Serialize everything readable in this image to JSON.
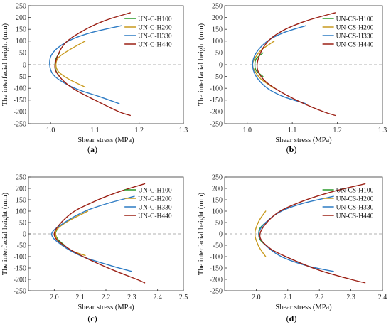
{
  "chart_data": [
    {
      "type": "line",
      "panel_label": "a",
      "xlabel": "Shear stress (MPa)",
      "ylabel": "The interfacial height (mm)",
      "xlim": [
        0.95,
        1.3
      ],
      "ylim": [
        -250,
        250
      ],
      "xticks": [
        1.0,
        1.1,
        1.2,
        1.3
      ],
      "yticks": [
        -250,
        -200,
        -150,
        -100,
        -50,
        0,
        50,
        100,
        150,
        200,
        250
      ],
      "xtick_labels": [
        "1.0",
        "1.1",
        "1.2",
        "1.3"
      ],
      "ytick_labels": [
        "-250",
        "-200",
        "-150",
        "-100",
        "-50",
        "0",
        "50",
        "100",
        "150",
        "200",
        "250"
      ],
      "reference_line": 0,
      "legend_position": "top-right",
      "series": [
        {
          "name": "UN-C-H100",
          "color": "#2a9a2a",
          "points": [
            [
              1.02,
              50
            ],
            [
              1.012,
              25
            ],
            [
              1.01,
              0
            ],
            [
              1.012,
              -25
            ],
            [
              1.02,
              -50
            ]
          ]
        },
        {
          "name": "UN-C-H200",
          "color": "#c89a1e",
          "points": [
            [
              1.078,
              100
            ],
            [
              1.04,
              60
            ],
            [
              1.018,
              30
            ],
            [
              1.012,
              0
            ],
            [
              1.018,
              -30
            ],
            [
              1.04,
              -60
            ],
            [
              1.078,
              -95
            ]
          ]
        },
        {
          "name": "UN-C-H330",
          "color": "#2d7bc4",
          "points": [
            [
              1.16,
              165
            ],
            [
              1.09,
              135
            ],
            [
              1.04,
              100
            ],
            [
              1.005,
              50
            ],
            [
              0.998,
              0
            ],
            [
              1.01,
              -50
            ],
            [
              1.055,
              -100
            ],
            [
              1.11,
              -135
            ],
            [
              1.155,
              -165
            ]
          ]
        },
        {
          "name": "UN-C-H440",
          "color": "#9b2015",
          "points": [
            [
              1.18,
              220
            ],
            [
              1.12,
              185
            ],
            [
              1.07,
              140
            ],
            [
              1.03,
              85
            ],
            [
              1.01,
              0
            ],
            [
              1.02,
              -50
            ],
            [
              1.05,
              -100
            ],
            [
              1.1,
              -150
            ],
            [
              1.155,
              -200
            ],
            [
              1.18,
              -215
            ]
          ]
        }
      ]
    },
    {
      "type": "line",
      "panel_label": "b",
      "xlabel": "Shear stress (MPa)",
      "ylabel": "The interfacial height (mm)",
      "xlim": [
        0.95,
        1.3
      ],
      "ylim": [
        -250,
        250
      ],
      "xticks": [
        1.0,
        1.1,
        1.2,
        1.3
      ],
      "yticks": [
        -250,
        -200,
        -150,
        -100,
        -50,
        0,
        50,
        100,
        150,
        200,
        250
      ],
      "xtick_labels": [
        "1.0",
        "1.1",
        "1.2",
        "1.3"
      ],
      "ytick_labels": [
        "-250",
        "-200",
        "-150",
        "-100",
        "-50",
        "0",
        "50",
        "100",
        "150",
        "200",
        "250"
      ],
      "reference_line": 0,
      "legend_position": "top-right",
      "series": [
        {
          "name": "UN-CS-H100",
          "color": "#2a9a2a",
          "points": [
            [
              1.035,
              50
            ],
            [
              1.02,
              25
            ],
            [
              1.017,
              0
            ],
            [
              1.02,
              -25
            ],
            [
              1.035,
              -50
            ]
          ]
        },
        {
          "name": "UN-CS-H200",
          "color": "#c89a1e",
          "points": [
            [
              1.06,
              100
            ],
            [
              1.03,
              60
            ],
            [
              1.015,
              20
            ],
            [
              1.012,
              0
            ],
            [
              1.015,
              -20
            ],
            [
              1.03,
              -60
            ],
            [
              1.06,
              -100
            ]
          ]
        },
        {
          "name": "UN-CS-H330",
          "color": "#2d7bc4",
          "points": [
            [
              1.13,
              165
            ],
            [
              1.08,
              135
            ],
            [
              1.045,
              100
            ],
            [
              1.02,
              50
            ],
            [
              1.012,
              0
            ],
            [
              1.02,
              -50
            ],
            [
              1.045,
              -100
            ],
            [
              1.08,
              -135
            ],
            [
              1.13,
              -165
            ]
          ]
        },
        {
          "name": "UN-CS-H440",
          "color": "#9b2015",
          "points": [
            [
              1.195,
              220
            ],
            [
              1.13,
              185
            ],
            [
              1.075,
              140
            ],
            [
              1.04,
              85
            ],
            [
              1.022,
              0
            ],
            [
              1.035,
              -60
            ],
            [
              1.07,
              -110
            ],
            [
              1.12,
              -160
            ],
            [
              1.17,
              -200
            ],
            [
              1.195,
              -215
            ]
          ]
        }
      ]
    },
    {
      "type": "line",
      "panel_label": "c",
      "xlabel": "Shear stress (MPa)",
      "ylabel": "The interfacial height (mm)",
      "xlim": [
        1.9,
        2.5
      ],
      "ylim": [
        -250,
        250
      ],
      "xticks": [
        2.0,
        2.1,
        2.2,
        2.3,
        2.4,
        2.5
      ],
      "yticks": [
        -250,
        -200,
        -150,
        -100,
        -50,
        0,
        50,
        100,
        150,
        200,
        250
      ],
      "xtick_labels": [
        "2.0",
        "2.1",
        "2.2",
        "2.3",
        "2.4",
        "2.5"
      ],
      "ytick_labels": [
        "-250",
        "-200",
        "-150",
        "-100",
        "-50",
        "0",
        "50",
        "100",
        "150",
        "200",
        "250"
      ],
      "reference_line": 0,
      "legend_position": "top-right",
      "series": [
        {
          "name": "UN-C-H100",
          "color": "#2a9a2a",
          "points": [
            [
              2.04,
              50
            ],
            [
              2.015,
              25
            ],
            [
              2.005,
              0
            ],
            [
              2.015,
              -25
            ],
            [
              2.04,
              -50
            ]
          ]
        },
        {
          "name": "UN-C-H200",
          "color": "#c89a1e",
          "points": [
            [
              2.13,
              100
            ],
            [
              2.06,
              60
            ],
            [
              2.015,
              25
            ],
            [
              2.005,
              0
            ],
            [
              2.02,
              -40
            ],
            [
              2.07,
              -75
            ],
            [
              2.12,
              -95
            ]
          ]
        },
        {
          "name": "UN-C-H330",
          "color": "#2d7bc4",
          "points": [
            [
              2.31,
              165
            ],
            [
              2.21,
              135
            ],
            [
              2.12,
              100
            ],
            [
              2.04,
              50
            ],
            [
              1.99,
              0
            ],
            [
              2.03,
              -50
            ],
            [
              2.11,
              -100
            ],
            [
              2.22,
              -140
            ],
            [
              2.3,
              -165
            ]
          ]
        },
        {
          "name": "UN-C-H440",
          "color": "#9b2015",
          "points": [
            [
              2.35,
              220
            ],
            [
              2.25,
              185
            ],
            [
              2.15,
              140
            ],
            [
              2.06,
              85
            ],
            [
              2.0,
              0
            ],
            [
              2.05,
              -60
            ],
            [
              2.13,
              -110
            ],
            [
              2.23,
              -160
            ],
            [
              2.32,
              -200
            ],
            [
              2.35,
              -215
            ]
          ]
        }
      ]
    },
    {
      "type": "line",
      "panel_label": "d",
      "xlabel": "Shear stress (MPa)",
      "ylabel": "The interfacial height (mm)",
      "xlim": [
        1.9,
        2.4
      ],
      "ylim": [
        -250,
        250
      ],
      "xticks": [
        2.0,
        2.1,
        2.2,
        2.3,
        2.4
      ],
      "xtick_labels": [
        "2.0",
        "2.1",
        "2.2",
        "2.3",
        "2.4"
      ],
      "yticks": [
        -250,
        -200,
        -150,
        -100,
        -50,
        0,
        50,
        100,
        150,
        200,
        250
      ],
      "ytick_labels": [
        "-250",
        "-200",
        "-150",
        "-100",
        "-50",
        "0",
        "50",
        "100",
        "150",
        "200",
        "250"
      ],
      "reference_line": 0,
      "legend_position": "top-right",
      "series": [
        {
          "name": "UN-CS-H100",
          "color": "#2a9a2a",
          "points": [
            [
              2.03,
              50
            ],
            [
              2.012,
              25
            ],
            [
              2.008,
              0
            ],
            [
              2.012,
              -25
            ],
            [
              2.03,
              -50
            ]
          ]
        },
        {
          "name": "UN-CS-H200",
          "color": "#c89a1e",
          "points": [
            [
              2.03,
              100
            ],
            [
              2.01,
              60
            ],
            [
              1.998,
              20
            ],
            [
              1.996,
              0
            ],
            [
              1.998,
              -20
            ],
            [
              2.01,
              -60
            ],
            [
              2.03,
              -100
            ]
          ]
        },
        {
          "name": "UN-CS-H330",
          "color": "#2d7bc4",
          "points": [
            [
              2.245,
              165
            ],
            [
              2.15,
              135
            ],
            [
              2.08,
              100
            ],
            [
              2.03,
              50
            ],
            [
              2.008,
              0
            ],
            [
              2.03,
              -50
            ],
            [
              2.08,
              -100
            ],
            [
              2.16,
              -140
            ],
            [
              2.245,
              -165
            ]
          ]
        },
        {
          "name": "UN-CS-H440",
          "color": "#9b2015",
          "points": [
            [
              2.345,
              220
            ],
            [
              2.24,
              185
            ],
            [
              2.14,
              140
            ],
            [
              2.06,
              85
            ],
            [
              2.012,
              0
            ],
            [
              2.04,
              -60
            ],
            [
              2.11,
              -110
            ],
            [
              2.2,
              -160
            ],
            [
              2.3,
              -200
            ],
            [
              2.345,
              -215
            ]
          ]
        }
      ]
    }
  ]
}
